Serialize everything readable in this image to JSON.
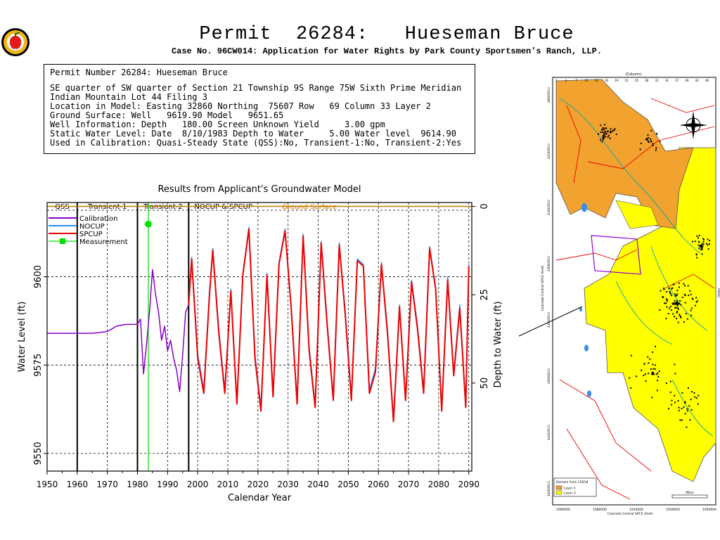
{
  "page": {
    "title": "Permit  26284:   Hueseman Bruce",
    "subtitle": "Case No. 96CW014: Application for Water Rights by Park County Sportsmen's Ranch, LLP."
  },
  "info_box": {
    "lines": [
      "Permit Number 26284: Hueseman Bruce",
      "SE quarter of SW quarter of Section 21 Township 9S Range 75W Sixth Prime Meridian",
      "Indian Mountain Lot 44 Filing 3",
      "Location in Model: Easting 32860 Northing  75607 Row   69 Column 33 Layer 2",
      "Ground Surface: Well   9619.90 Model   9651.65",
      "Well Information: Depth   180.00 Screen Unknown Yield     3.00 gpm",
      "Static Water Level: Date  8/10/1983 Depth to Water     5.00 Water level  9614.90",
      "Used in Calibration: Quasi-Steady State (QSS):No, Transient-1:No, Transient-2:Yes"
    ]
  },
  "chart_data": {
    "type": "line",
    "title": "Results from Applicant's Groundwater Model",
    "xlabel": "Calendar Year",
    "ylabel": "Water Level (ft)",
    "y2label": "Depth to Water (ft)",
    "xlim": [
      1950,
      2091
    ],
    "ylim": [
      9545,
      9621
    ],
    "xticks": [
      1950,
      1960,
      1970,
      1980,
      1990,
      2000,
      2010,
      2020,
      2030,
      2040,
      2050,
      2060,
      2070,
      2080,
      2090
    ],
    "yticks": [
      9550,
      9575,
      9600
    ],
    "y2ticks": [
      {
        "value": 9619.9,
        "label": "0"
      },
      {
        "value": 9594.9,
        "label": "25"
      },
      {
        "value": 9569.9,
        "label": "50"
      }
    ],
    "grid": "dashed",
    "periods": [
      {
        "label": "QSS",
        "start": 1950,
        "end": 1960
      },
      {
        "label": "Transient-1",
        "start": 1960,
        "end": 1980
      },
      {
        "label": "Transient-2",
        "start": 1980,
        "end": 1997
      },
      {
        "label": "NOCUP & SPCUP",
        "start": 1997,
        "end": 2091
      }
    ],
    "period_boundaries": [
      1960,
      1980,
      1997
    ],
    "ground_surface": {
      "label": "Ground Surface",
      "value": 9619.9,
      "color": "#cc7a00"
    },
    "measurement_marker": {
      "year": 1983.6,
      "value": 9614.9,
      "color": "#00dd00"
    },
    "legend": {
      "position": "top-left",
      "entries": [
        {
          "name": "Calibration",
          "color": "#8800cc",
          "kind": "line"
        },
        {
          "name": "NOCUP",
          "color": "#2a8ff7",
          "kind": "line"
        },
        {
          "name": "SPCUP",
          "color": "#ee0000",
          "kind": "line"
        },
        {
          "name": "Measurement",
          "color": "#00dd00",
          "kind": "marker"
        }
      ]
    },
    "series": [
      {
        "name": "Calibration",
        "color": "#8800cc",
        "x": [
          1950,
          1965,
          1970,
          1973,
          1976,
          1980,
          1981,
          1982,
          1983,
          1984,
          1985,
          1986,
          1987,
          1988,
          1989,
          1990,
          1991,
          1992,
          1993,
          1994,
          1995,
          1996,
          1997
        ],
        "y": [
          9584,
          9584,
          9584.5,
          9586,
          9586.5,
          9586.5,
          9588,
          9572.5,
          9581,
          9590,
          9602,
          9595,
          9590,
          9582,
          9586,
          9579,
          9582,
          9577,
          9573.5,
          9567.5,
          9578,
          9590,
          9592
        ]
      },
      {
        "name": "NOCUP",
        "color": "#2a8ff7",
        "x": [
          1997,
          1998,
          2000,
          2002,
          2004,
          2005,
          2007,
          2009,
          2011,
          2013,
          2015,
          2017,
          2019,
          2021,
          2023,
          2025,
          2027,
          2029,
          2031,
          2033,
          2035,
          2037,
          2039,
          2041,
          2043,
          2045,
          2047,
          2049,
          2051,
          2053,
          2055,
          2057,
          2059,
          2061,
          2063,
          2065,
          2067,
          2069,
          2071,
          2073,
          2075,
          2077,
          2079,
          2081,
          2083,
          2085,
          2087,
          2089,
          2090
        ],
        "y": [
          9592,
          9605.5,
          9578,
          9568,
          9597,
          9608,
          9585,
          9568,
          9596.5,
          9565,
          9601,
          9614,
          9578,
          9563,
          9601,
          9567,
          9604,
          9613.5,
          9592,
          9565,
          9612,
          9580,
          9564,
          9610,
          9587,
          9566,
          9609.5,
          9590,
          9566,
          9605,
          9603.5,
          9568,
          9574,
          9604,
          9585,
          9560,
          9592,
          9566,
          9599,
          9586,
          9568,
          9608.5,
          9597,
          9563,
          9600,
          9573,
          9592,
          9564,
          9603.5
        ]
      },
      {
        "name": "SPCUP",
        "color": "#ee0000",
        "x": [
          1997,
          1998,
          2000,
          2002,
          2004,
          2005,
          2007,
          2009,
          2011,
          2013,
          2015,
          2017,
          2019,
          2021,
          2023,
          2025,
          2027,
          2029,
          2031,
          2033,
          2035,
          2037,
          2039,
          2041,
          2043,
          2045,
          2047,
          2049,
          2051,
          2053,
          2055,
          2057,
          2059,
          2061,
          2063,
          2065,
          2067,
          2069,
          2071,
          2073,
          2075,
          2077,
          2079,
          2081,
          2083,
          2085,
          2087,
          2089,
          2090
        ],
        "y": [
          9592,
          9605,
          9577,
          9567,
          9596,
          9607.5,
          9584,
          9567,
          9596,
          9564,
          9600.5,
          9613.5,
          9577,
          9562,
          9600.5,
          9566,
          9603.5,
          9613,
          9591.5,
          9564,
          9611.5,
          9579,
          9563,
          9609.5,
          9586,
          9565,
          9609,
          9589,
          9565,
          9604.5,
          9603,
          9567,
          9573,
          9603.5,
          9584,
          9559,
          9591.5,
          9565,
          9598.5,
          9585,
          9567,
          9608,
          9596.5,
          9562,
          9599,
          9572,
          9591,
          9563,
          9603
        ]
      }
    ]
  },
  "map": {
    "top_axis_label": "(Column)",
    "top_axis_numbers": [
      "1",
      "4",
      "7",
      "10",
      "13",
      "16",
      "19",
      "22",
      "25",
      "28",
      "31",
      "34",
      "37",
      "40",
      "43",
      "46"
    ],
    "right_axis_label": "(Row)",
    "left_axis_label": "Colorado Central SPCS (feet)",
    "bottom_axis_label": "Colorado Central SPCS (feet)",
    "left_axis_numbers": [
      "4860000.0",
      "4320000.0",
      "4340000.0",
      "4360000.0",
      "4380000.0",
      "4400000.0",
      "4420000.0",
      "4440000.0"
    ],
    "bottom_axis_numbers": [
      "1960000",
      "1980000",
      "1910000",
      "1930000",
      "1950000"
    ],
    "legend_title": "Domain from CSS18",
    "legend_entries": [
      {
        "name": "Layer 1",
        "color": "#f2a22e"
      },
      {
        "name": "Layer 2",
        "color": "#ffff00"
      }
    ],
    "scale_label": "Miles",
    "colors": {
      "layer1": "#f2a22e",
      "layer2": "#ffff00",
      "roads": "#ee0000",
      "streams": "#00aaaa",
      "lakes": "#3b8cf0",
      "wells": "#000000",
      "boundary": "#9900cc"
    }
  }
}
